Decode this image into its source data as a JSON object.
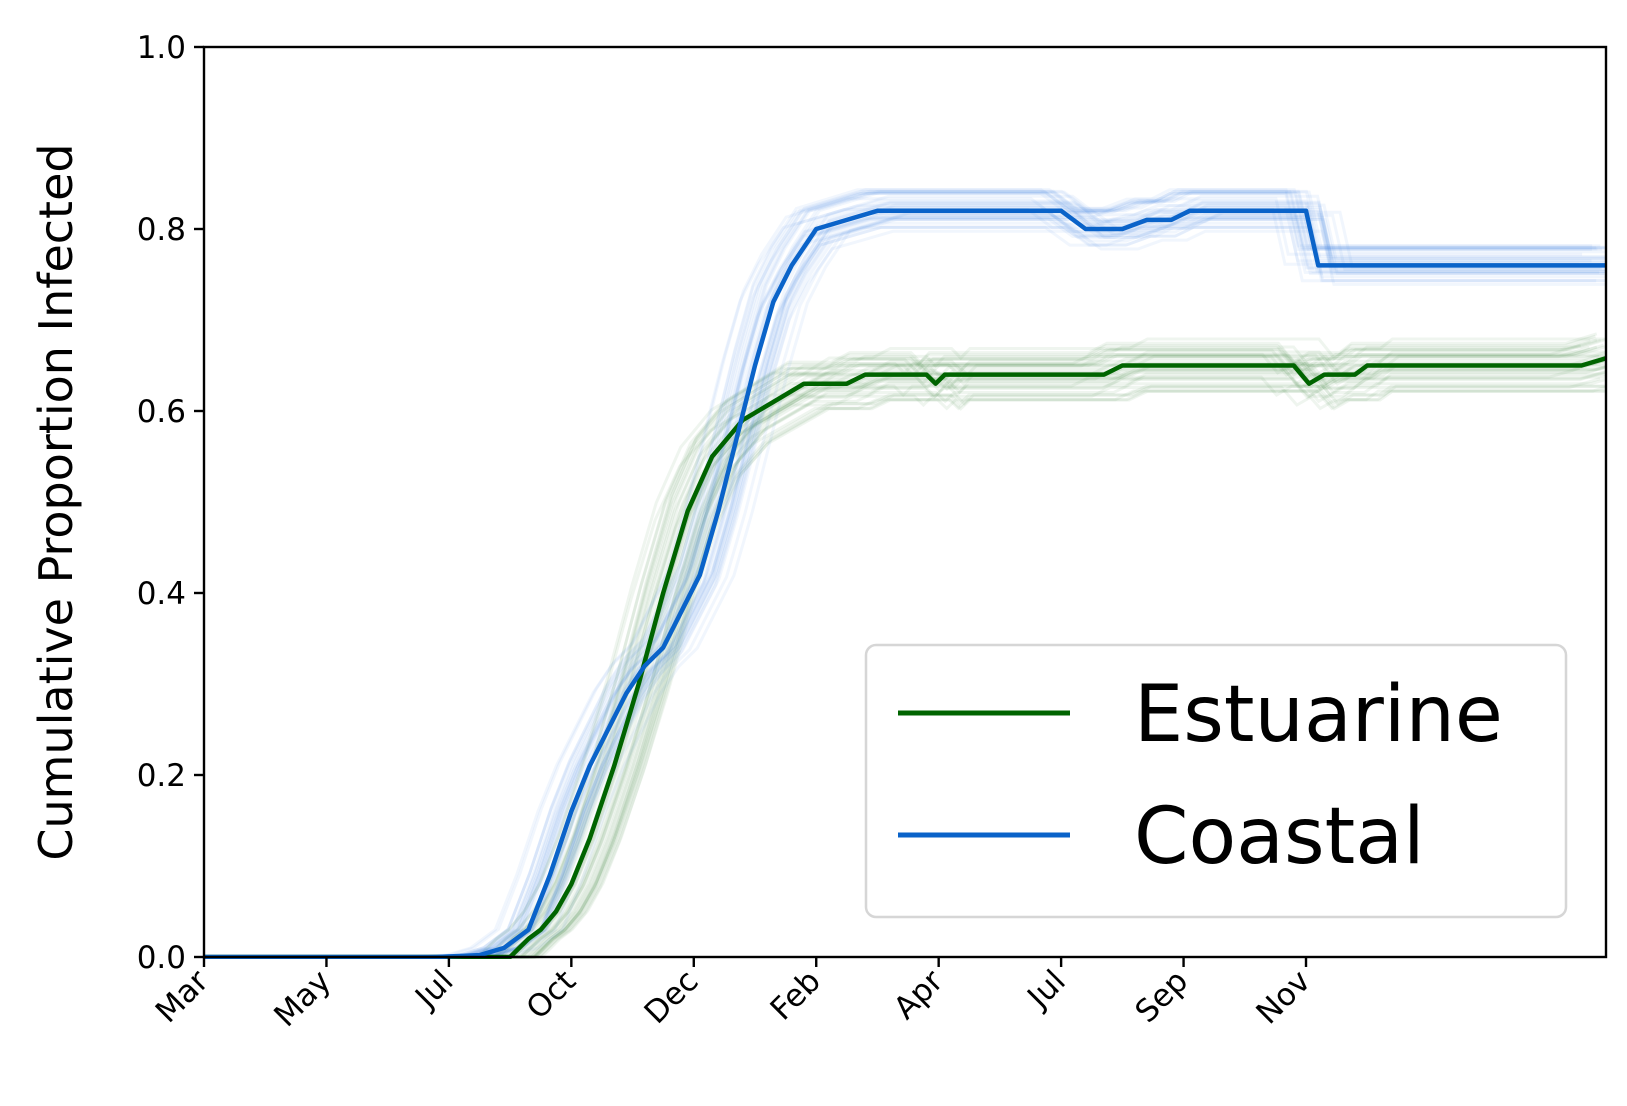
{
  "chart_data": {
    "type": "line",
    "title": "",
    "xlabel": "",
    "ylabel": "Cumulative Proportion Infected",
    "x_tick_labels": [
      "Mar",
      "May",
      "Jul",
      "Oct",
      "Dec",
      "Feb",
      "Apr",
      "Jul",
      "Sep",
      "Nov"
    ],
    "x_range": [
      "Mar",
      "Dec"
    ],
    "y_ticks": [
      "0.0",
      "0.2",
      "0.4",
      "0.6",
      "0.8",
      "1.0"
    ],
    "ylim": [
      0,
      1
    ],
    "grid": false,
    "legend_position": "lower-right",
    "series": [
      {
        "name": "Estuarine",
        "color": "#006400",
        "ensemble_color": "#2e7d32",
        "x": [
          0,
          4,
          5,
          5.15,
          5.3,
          5.5,
          5.75,
          6.0,
          6.3,
          6.7,
          7.1,
          7.5,
          7.9,
          8.3,
          8.8,
          9.3,
          9.8,
          10.3,
          10.5,
          10.8,
          11.2,
          11.8,
          11.95,
          12.1,
          14.7,
          15.0,
          17.8,
          18.05,
          18.3,
          18.8,
          19.0,
          22.5,
          23.0
        ],
        "values": [
          0,
          0,
          0,
          0.01,
          0.02,
          0.03,
          0.05,
          0.08,
          0.13,
          0.21,
          0.3,
          0.4,
          0.49,
          0.55,
          0.59,
          0.61,
          0.63,
          0.63,
          0.63,
          0.64,
          0.64,
          0.64,
          0.63,
          0.64,
          0.64,
          0.65,
          0.65,
          0.63,
          0.64,
          0.64,
          0.65,
          0.65,
          0.66
        ]
      },
      {
        "name": "Coastal",
        "color": "#0a63c9",
        "ensemble_color": "#4a90e2",
        "x": [
          0,
          3,
          3.8,
          4.5,
          4.9,
          5.3,
          5.65,
          6.0,
          6.3,
          6.6,
          6.9,
          7.2,
          7.5,
          7.8,
          8.1,
          8.4,
          8.7,
          9.0,
          9.3,
          9.6,
          9.8,
          10.0,
          10.5,
          11.0,
          14.0,
          14.4,
          14.6,
          15.0,
          15.4,
          15.8,
          16.1,
          16.5,
          18.0,
          18.2,
          18.5,
          23.0
        ],
        "values": [
          0,
          0,
          0.0,
          0.002,
          0.01,
          0.03,
          0.09,
          0.16,
          0.21,
          0.25,
          0.29,
          0.32,
          0.34,
          0.38,
          0.42,
          0.49,
          0.57,
          0.65,
          0.72,
          0.76,
          0.78,
          0.8,
          0.81,
          0.82,
          0.82,
          0.8,
          0.8,
          0.8,
          0.81,
          0.81,
          0.82,
          0.82,
          0.82,
          0.76,
          0.76,
          0.76
        ]
      }
    ],
    "ensemble_runs_per_series": 40
  }
}
